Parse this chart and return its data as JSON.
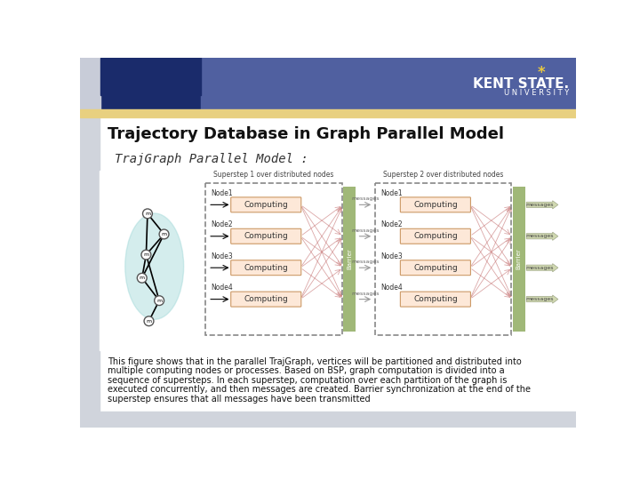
{
  "title": "Trajectory Database in Graph Parallel Model",
  "subtitle": "TrajGraph Parallel Model :",
  "bg_color": "#f0f0f0",
  "header_color_left": "#1a2b6b",
  "header_color_right": "#6b7fa8",
  "gold_bar_color": "#e8d080",
  "left_stripe_color": "#c8ccd8",
  "body_bg": "#ffffff",
  "body_text_color": "#111111",
  "description_lines": [
    "This figure shows that in the parallel TrajGraph, vertices will be partitioned and distributed into",
    "multiple computing nodes or processes. Based on BSP, graph computation is divided into a",
    "sequence of supersteps. In each superstep, computation over each partition of the graph is",
    "executed concurrently, and then messages are created. Barrier synchronization at the end of the",
    "superstep ensures that all messages have been transmitted"
  ],
  "superstep1_label": "Superstep 1 over distributed nodes",
  "superstep2_label": "Superstep 2 over distributed nodes",
  "nodes": [
    "Node1",
    "Node2",
    "Node3",
    "Node4"
  ],
  "computing_box_color": "#fde8d8",
  "barrier_color": "#a0b878",
  "graph_node_color": "#a0d8d8",
  "arrow_cross_color": "#c87878"
}
